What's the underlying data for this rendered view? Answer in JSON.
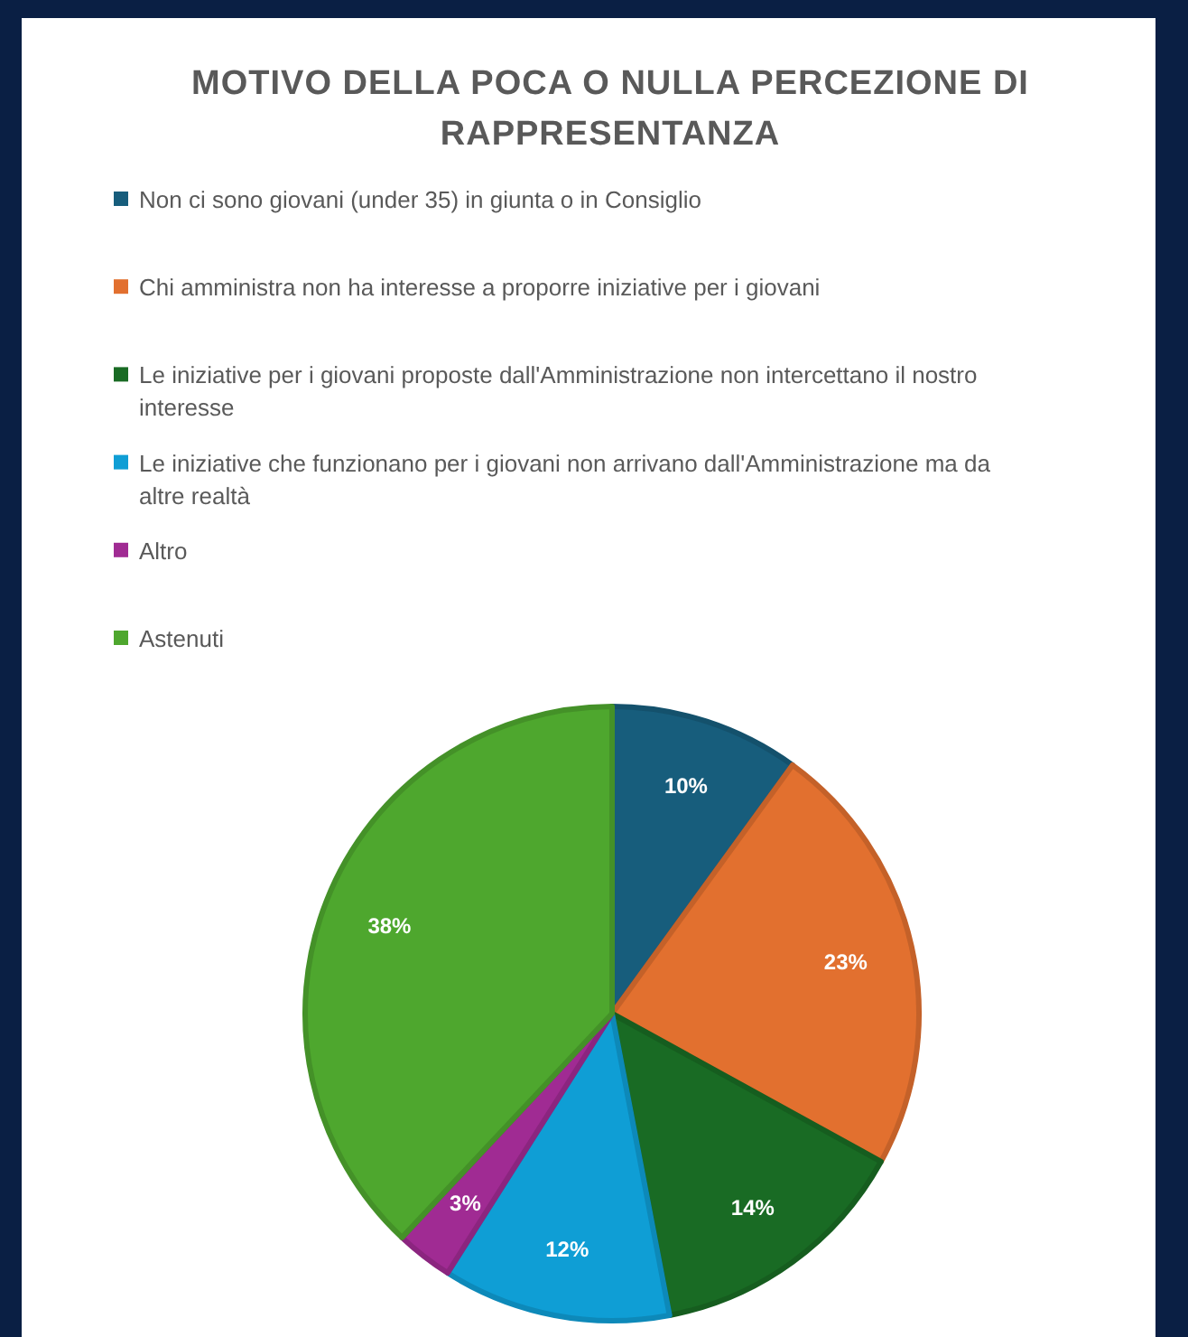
{
  "chart_data": {
    "type": "pie",
    "title": "MOTIVO DELLA POCA O NULLA PERCEZIONE DI RAPPRESENTANZA",
    "categories": [
      "Non ci sono giovani (under 35) in giunta o in Consiglio",
      "Chi amministra non ha interesse a proporre iniziative per i giovani",
      "Le iniziative per i giovani proposte dall'Amministrazione non intercettano il nostro interesse",
      "Le iniziative che funzionano per i giovani non arrivano dall'Amministrazione ma da altre realtà",
      "Altro",
      "Astenuti"
    ],
    "values": [
      10,
      23,
      14,
      12,
      3,
      38
    ],
    "colors": [
      "#175d7c",
      "#e2702f",
      "#196b24",
      "#0f9ed5",
      "#a02b93",
      "#4ea72e"
    ],
    "value_labels": [
      "10%",
      "23%",
      "14%",
      "12%",
      "3%",
      "38%"
    ],
    "legend": "top"
  }
}
